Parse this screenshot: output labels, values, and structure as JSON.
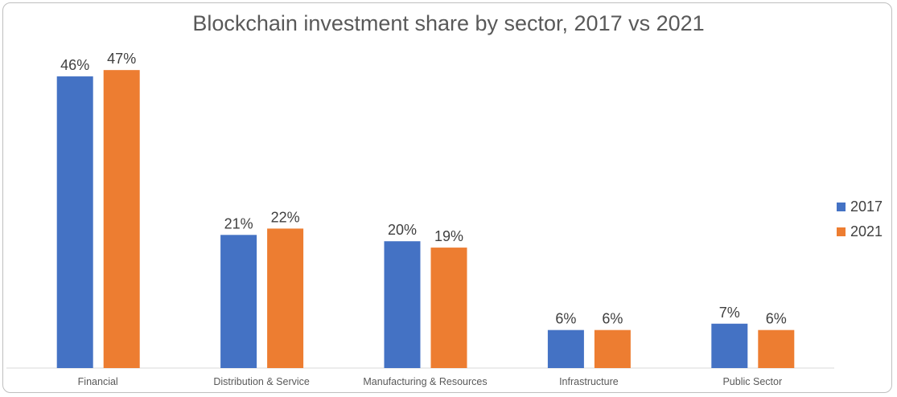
{
  "chart_data": {
    "type": "bar",
    "title": "Blockchain investment share by sector, 2017 vs 2021",
    "categories": [
      "Financial",
      "Distribution & Service",
      "Manufacturing & Resources",
      "Infrastructure",
      "Public Sector"
    ],
    "series": [
      {
        "name": "2017",
        "color": "#4472c4",
        "values": [
          46,
          21,
          20,
          6,
          7
        ],
        "labels": [
          "46%",
          "21%",
          "20%",
          "6%",
          "7%"
        ]
      },
      {
        "name": "2021",
        "color": "#ed7d31",
        "values": [
          47,
          22,
          19,
          6,
          6
        ],
        "labels": [
          "47%",
          "22%",
          "19%",
          "6%",
          "6%"
        ]
      }
    ],
    "unit": "%",
    "ylim": [
      0,
      50
    ],
    "grid": false,
    "legend": "right"
  }
}
